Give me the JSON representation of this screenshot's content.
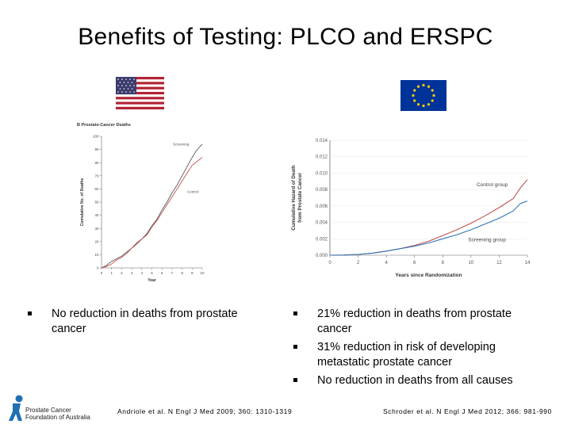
{
  "title": "Benefits of Testing: PLCO and ERSPC",
  "left_chart": {
    "panel_label": "B  Prostate-Cancer Deaths",
    "ylabel": "Cumulative No. of Deaths",
    "xlabel": "Year",
    "y_ticks": [
      "0",
      "10",
      "20",
      "30",
      "40",
      "50",
      "60",
      "70",
      "80",
      "90",
      "100"
    ],
    "x_ticks": [
      "0",
      "1",
      "2",
      "3",
      "4",
      "5",
      "6",
      "7",
      "8",
      "9",
      "10"
    ],
    "series_labels": [
      "Screening",
      "Control"
    ]
  },
  "right_chart": {
    "ylabel": "Cumulative Hazard of Death from Prostate Cancer",
    "xlabel": "Years since Randomization",
    "y_ticks": [
      "0.000",
      "0.002",
      "0.004",
      "0.006",
      "0.008",
      "0.010",
      "0.012",
      "0.014"
    ],
    "x_ticks": [
      "0",
      "2",
      "4",
      "6",
      "8",
      "10",
      "12",
      "14"
    ],
    "series_labels": [
      "Control group",
      "Screening group"
    ]
  },
  "chart_data": [
    {
      "type": "line",
      "title": "Prostate-Cancer Deaths",
      "xlabel": "Year",
      "ylabel": "Cumulative No. of Deaths",
      "xlim": [
        0,
        10
      ],
      "ylim": [
        0,
        100
      ],
      "series": [
        {
          "name": "Screening",
          "color": "#5a5a5a",
          "x": [
            0,
            0.5,
            1,
            1.5,
            2,
            2.5,
            3,
            3.5,
            4,
            4.5,
            5,
            5.5,
            6,
            6.5,
            7,
            7.5,
            8,
            8.5,
            9,
            9.5,
            10
          ],
          "y": [
            0,
            2,
            5,
            7,
            9,
            12,
            15,
            19,
            22,
            26,
            32,
            37,
            44,
            50,
            57,
            63,
            70,
            77,
            84,
            90,
            94
          ]
        },
        {
          "name": "Control",
          "color": "#c0504d",
          "x": [
            0,
            0.5,
            1,
            1.5,
            2,
            2.5,
            3,
            3.5,
            4,
            4.5,
            5,
            5.5,
            6,
            6.5,
            7,
            7.5,
            8,
            8.5,
            9,
            9.5,
            10
          ],
          "y": [
            0,
            1,
            3,
            6,
            8,
            11,
            15,
            18,
            22,
            25,
            31,
            36,
            42,
            48,
            54,
            60,
            66,
            72,
            78,
            81,
            84
          ]
        }
      ]
    },
    {
      "type": "line",
      "xlabel": "Years since Randomization",
      "ylabel": "Cumulative Hazard of Death from Prostate Cancer",
      "xlim": [
        0,
        14
      ],
      "ylim": [
        0,
        0.014
      ],
      "series": [
        {
          "name": "Control group",
          "color": "#c0504d",
          "x": [
            0,
            1,
            2,
            3,
            4,
            5,
            6,
            7,
            8,
            9,
            10,
            11,
            12,
            13,
            13.5,
            14
          ],
          "y": [
            0,
            2e-05,
            0.0001,
            0.00025,
            0.0005,
            0.0008,
            0.0012,
            0.0017,
            0.0024,
            0.0031,
            0.0039,
            0.0048,
            0.0058,
            0.0069,
            0.0082,
            0.0092
          ]
        },
        {
          "name": "Screening group",
          "color": "#2e75b6",
          "x": [
            0,
            1,
            2,
            3,
            4,
            5,
            6,
            7,
            8,
            9,
            10,
            11,
            12,
            13,
            13.5,
            14
          ],
          "y": [
            0,
            2e-05,
            0.0001,
            0.00025,
            0.0005,
            0.0008,
            0.0011,
            0.0015,
            0.002,
            0.0025,
            0.0031,
            0.0038,
            0.0045,
            0.0054,
            0.0063,
            0.0066
          ]
        }
      ]
    }
  ],
  "bullets_left": [
    "No reduction in deaths from prostate cancer"
  ],
  "bullets_right": [
    "21% reduction in deaths from prostate cancer",
    "31% reduction in risk of developing metastatic prostate cancer",
    "No reduction in deaths from all causes"
  ],
  "citation_left": "Andriole et al. N Engl J Med 2009; 360: 1310-1319",
  "citation_right": "Schroder et al. N Engl J Med 2012; 366: 981-990",
  "logo": {
    "line1": "Prostate Cancer",
    "line2": "Foundation of Australia",
    "color": "#1f6fb5"
  }
}
